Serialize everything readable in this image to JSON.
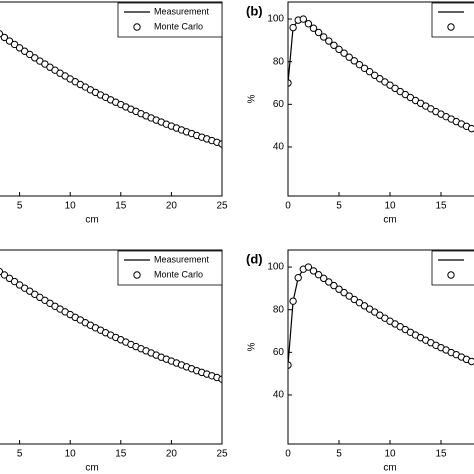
{
  "chart_data": [
    {
      "type": "line",
      "xlabel": "cm",
      "xlim": [
        0,
        25
      ],
      "ylim": [
        17,
        108
      ],
      "xticks": [
        5,
        10,
        15,
        20,
        25
      ],
      "x": [
        2.5,
        3,
        3.5,
        4,
        4.5,
        5,
        5.5,
        6,
        6.5,
        7,
        7.5,
        8,
        8.5,
        9,
        9.5,
        10,
        10.5,
        11,
        11.5,
        12,
        12.5,
        13,
        13.5,
        14,
        14.5,
        15,
        15.5,
        16,
        16.5,
        17,
        17.5,
        18,
        18.5,
        19,
        19.5,
        20,
        20.5,
        21,
        21.5,
        22,
        22.5,
        23,
        23.5,
        24,
        24.5,
        25
      ],
      "series": [
        {
          "name": "Measurement",
          "style": "line",
          "color": "#000000",
          "values": [
            94.8,
            93.1,
            91.4,
            89.7,
            88.1,
            86.5,
            84.9,
            83.4,
            81.8,
            80.3,
            78.9,
            77.4,
            76.0,
            74.6,
            73.3,
            71.9,
            70.6,
            69.3,
            68.1,
            66.8,
            65.6,
            64.4,
            63.3,
            62.1,
            61.0,
            59.9,
            58.8,
            57.7,
            56.7,
            55.6,
            54.6,
            53.6,
            52.6,
            51.7,
            50.7,
            49.8,
            48.9,
            48.0,
            47.1,
            46.3,
            45.4,
            44.6,
            43.8,
            43.0,
            42.2,
            41.4
          ]
        },
        {
          "name": "Monte Carlo",
          "style": "marker",
          "color": "#000000",
          "values": [
            94.8,
            93.1,
            91.4,
            89.7,
            88.1,
            86.5,
            84.9,
            83.4,
            81.8,
            80.3,
            78.9,
            77.4,
            76.0,
            74.6,
            73.3,
            71.9,
            70.6,
            69.3,
            68.1,
            66.8,
            65.6,
            64.4,
            63.3,
            62.1,
            61.0,
            59.9,
            58.8,
            57.7,
            56.7,
            55.6,
            54.6,
            53.6,
            52.6,
            51.7,
            50.7,
            49.8,
            48.9,
            48.0,
            47.1,
            46.3,
            45.4,
            44.6,
            43.8,
            43.0,
            42.2,
            41.4
          ]
        }
      ]
    },
    {
      "type": "line",
      "panel_label": "(b)",
      "xlabel": "cm",
      "ylabel": "%",
      "xlim": [
        0,
        25
      ],
      "ylim": [
        17,
        108
      ],
      "xticks": [
        0,
        5,
        10,
        15
      ],
      "yticks": [
        40,
        60,
        80,
        100
      ],
      "x": [
        0,
        0.5,
        1,
        1.5,
        2,
        2.5,
        3,
        3.5,
        4,
        4.5,
        5,
        5.5,
        6,
        6.5,
        7,
        7.5,
        8,
        8.5,
        9,
        9.5,
        10,
        10.5,
        11,
        11.5,
        12,
        12.5,
        13,
        13.5,
        14,
        14.5,
        15,
        15.5,
        16,
        16.5,
        17,
        17.5,
        18
      ],
      "series": [
        {
          "style": "line",
          "color": "#000000",
          "values": [
            70,
            96,
            99.5,
            100,
            97.8,
            95.7,
            93.7,
            91.6,
            89.7,
            87.7,
            85.8,
            84.0,
            82.1,
            80.4,
            78.6,
            76.9,
            75.3,
            73.6,
            72.0,
            70.5,
            69.0,
            67.5,
            66.0,
            64.6,
            63.2,
            61.8,
            60.5,
            59.2,
            57.9,
            56.6,
            55.4,
            54.2,
            53.1,
            51.9,
            50.8,
            49.7,
            48.6
          ]
        },
        {
          "style": "marker",
          "color": "#000000",
          "values": [
            70,
            96,
            99.5,
            100,
            97.8,
            95.7,
            93.7,
            91.6,
            89.7,
            87.7,
            85.8,
            84.0,
            82.1,
            80.4,
            78.6,
            76.9,
            75.3,
            73.6,
            72.0,
            70.5,
            69.0,
            67.5,
            66.0,
            64.6,
            63.2,
            61.8,
            60.5,
            59.2,
            57.9,
            56.6,
            55.4,
            54.2,
            53.1,
            51.9,
            50.8,
            49.7,
            48.6
          ]
        }
      ]
    },
    {
      "type": "line",
      "xlabel": "cm",
      "xlim": [
        0,
        25
      ],
      "ylim": [
        17,
        108
      ],
      "xticks": [
        5,
        10,
        15,
        20,
        25
      ],
      "x": [
        2.5,
        3,
        3.5,
        4,
        4.5,
        5,
        5.5,
        6,
        6.5,
        7,
        7.5,
        8,
        8.5,
        9,
        9.5,
        10,
        10.5,
        11,
        11.5,
        12,
        12.5,
        13,
        13.5,
        14,
        14.5,
        15,
        15.5,
        16,
        16.5,
        17,
        17.5,
        18,
        18.5,
        19,
        19.5,
        20,
        20.5,
        21,
        21.5,
        22,
        22.5,
        23,
        23.5,
        24,
        24.5,
        25
      ],
      "series": [
        {
          "name": "Measurement",
          "style": "line",
          "color": "#000000",
          "values": [
            99.5,
            97.9,
            96.3,
            94.7,
            93.2,
            91.6,
            90.1,
            88.7,
            87.2,
            85.8,
            84.4,
            83.0,
            81.6,
            80.3,
            79.0,
            77.7,
            76.4,
            75.2,
            73.9,
            72.7,
            71.5,
            70.4,
            69.2,
            68.1,
            67.0,
            65.9,
            64.8,
            63.7,
            62.7,
            61.7,
            60.7,
            59.7,
            58.7,
            57.7,
            56.8,
            55.9,
            55.0,
            54.1,
            53.2,
            52.3,
            51.4,
            50.6,
            49.8,
            49.0,
            48.2,
            47.4
          ]
        },
        {
          "name": "Monte Carlo",
          "style": "marker",
          "color": "#000000",
          "values": [
            99.5,
            97.9,
            96.3,
            94.7,
            93.2,
            91.6,
            90.1,
            88.7,
            87.2,
            85.8,
            84.4,
            83.0,
            81.6,
            80.3,
            79.0,
            77.7,
            76.4,
            75.2,
            73.9,
            72.7,
            71.5,
            70.4,
            69.2,
            68.1,
            67.0,
            65.9,
            64.8,
            63.7,
            62.7,
            61.7,
            60.7,
            59.7,
            58.7,
            57.7,
            56.8,
            55.9,
            55.0,
            54.1,
            53.2,
            52.3,
            51.4,
            50.6,
            49.8,
            49.0,
            48.2,
            47.4
          ]
        }
      ]
    },
    {
      "type": "line",
      "panel_label": "(d)",
      "xlabel": "cm",
      "ylabel": "%",
      "xlim": [
        0,
        25
      ],
      "ylim": [
        17,
        108
      ],
      "xticks": [
        0,
        5,
        10,
        15
      ],
      "yticks": [
        40,
        60,
        80,
        100
      ],
      "x": [
        0,
        0.5,
        1,
        1.5,
        2,
        2.5,
        3,
        3.5,
        4,
        4.5,
        5,
        5.5,
        6,
        6.5,
        7,
        7.5,
        8,
        8.5,
        9,
        9.5,
        10,
        10.5,
        11,
        11.5,
        12,
        12.5,
        13,
        13.5,
        14,
        14.5,
        15,
        15.5,
        16,
        16.5,
        17,
        17.5,
        18
      ],
      "series": [
        {
          "style": "line",
          "color": "#000000",
          "values": [
            54,
            84,
            95,
            99,
            100,
            98.2,
            96.4,
            94.7,
            93.0,
            91.3,
            89.6,
            88.0,
            86.4,
            84.8,
            83.3,
            81.8,
            80.3,
            78.9,
            77.4,
            76.0,
            74.6,
            73.3,
            72.0,
            70.7,
            69.4,
            68.1,
            66.9,
            65.7,
            64.5,
            63.3,
            62.2,
            61.1,
            59.9,
            58.9,
            57.8,
            56.7,
            55.7
          ]
        },
        {
          "style": "marker",
          "color": "#000000",
          "values": [
            54,
            84,
            95,
            99,
            100,
            98.2,
            96.4,
            94.7,
            93.0,
            91.3,
            89.6,
            88.0,
            86.4,
            84.8,
            83.3,
            81.8,
            80.3,
            78.9,
            77.4,
            76.0,
            74.6,
            73.3,
            72.0,
            70.7,
            69.4,
            68.1,
            66.9,
            65.7,
            64.5,
            63.3,
            62.2,
            61.1,
            59.9,
            58.9,
            57.8,
            56.7,
            55.7
          ]
        }
      ]
    }
  ]
}
